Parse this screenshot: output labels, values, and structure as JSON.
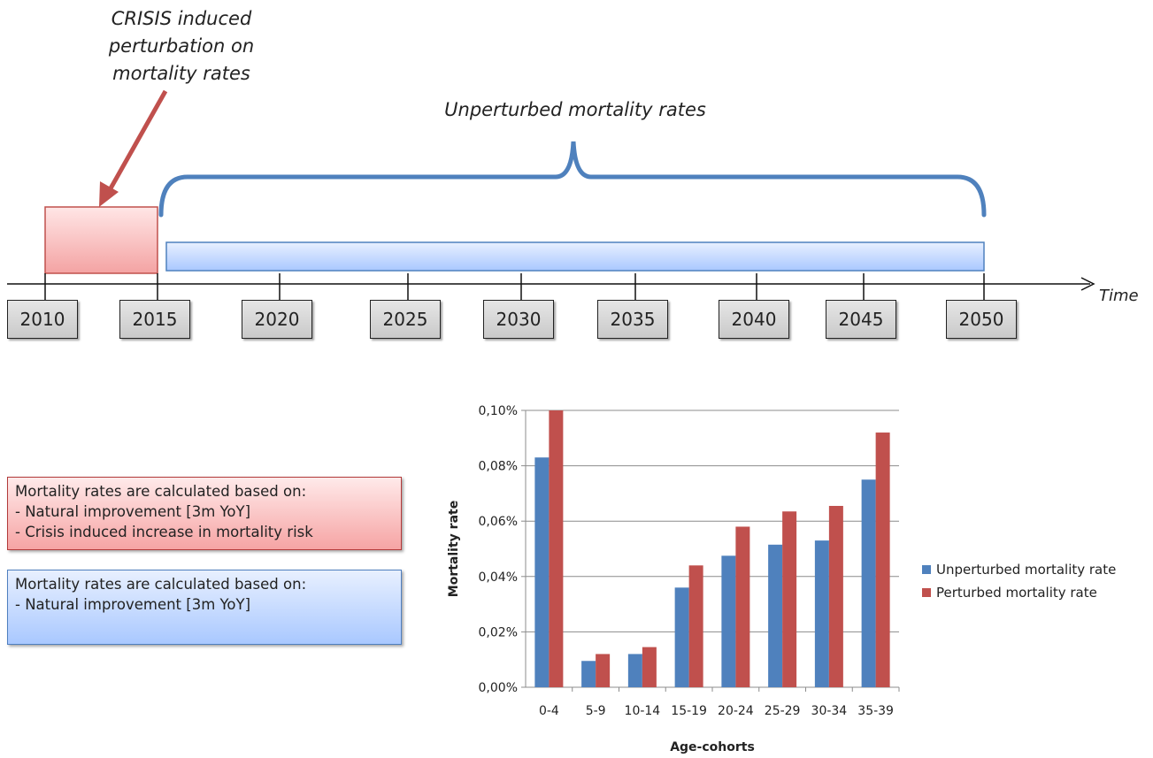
{
  "diagram": {
    "crisis_label": [
      "CRISIS induced",
      "perturbation on",
      "mortality rates"
    ],
    "unperturbed_label": "Unperturbed mortality rates",
    "time_label": "Time",
    "years": [
      "2010",
      "2015",
      "2020",
      "2025",
      "2030",
      "2035",
      "2040",
      "2045",
      "2050"
    ],
    "colors": {
      "crisis": "#c0504d",
      "unperturbed": "#4f81bd"
    }
  },
  "info_boxes": {
    "crisis": {
      "lines": [
        "Mortality rates are calculated based on:",
        "- Natural improvement [3m YoY]",
        "- Crisis induced increase in mortality risk"
      ]
    },
    "unperturbed": {
      "lines": [
        "Mortality rates are calculated based on:",
        "- Natural improvement [3m YoY]"
      ]
    }
  },
  "chart_data": {
    "type": "bar",
    "categories": [
      "0-4",
      "5-9",
      "10-14",
      "15-19",
      "20-24",
      "25-29",
      "30-34",
      "35-39"
    ],
    "series": [
      {
        "name": "Unperturbed mortality rate",
        "color": "#4f81bd",
        "values": [
          0.083,
          0.0095,
          0.012,
          0.036,
          0.0475,
          0.0515,
          0.053,
          0.075
        ]
      },
      {
        "name": "Perturbed mortality rate",
        "color": "#c0504d",
        "values": [
          0.1,
          0.012,
          0.0145,
          0.044,
          0.058,
          0.0635,
          0.0655,
          0.092
        ]
      }
    ],
    "xlabel": "Age-cohorts",
    "ylabel": "Mortality rate",
    "ylim": [
      0,
      0.1
    ],
    "yticks": [
      "0,00%",
      "0,02%",
      "0,04%",
      "0,06%",
      "0,08%",
      "0,10%"
    ],
    "grid": true,
    "legend_position": "right"
  }
}
